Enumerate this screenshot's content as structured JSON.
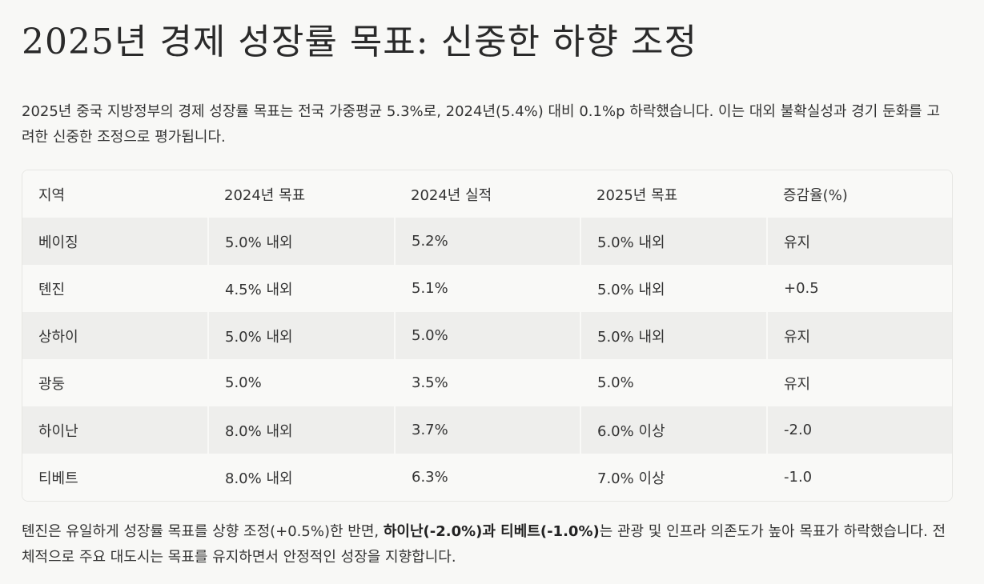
{
  "title": "2025년 경제 성장률 목표: 신중한 하향 조정",
  "intro": "2025년 중국 지방정부의 경제 성장률 목표는 전국 가중평균 5.3%로, 2024년(5.4%) 대비 0.1%p 하락했습니다. 이는 대외 불확실성과 경기 둔화를 고려한 신중한 조정으로 평가됩니다.",
  "table": {
    "headers": [
      "지역",
      "2024년 목표",
      "2024년 실적",
      "2025년 목표",
      "증감율(%)"
    ],
    "rows": [
      [
        "베이징",
        "5.0% 내외",
        "5.2%",
        "5.0% 내외",
        "유지"
      ],
      [
        "톈진",
        "4.5% 내외",
        "5.1%",
        "5.0% 내외",
        "+0.5"
      ],
      [
        "상하이",
        "5.0% 내외",
        "5.0%",
        "5.0% 내외",
        "유지"
      ],
      [
        "광둥",
        "5.0%",
        "3.5%",
        "5.0%",
        "유지"
      ],
      [
        "하이난",
        "8.0% 내외",
        "3.7%",
        "6.0% 이상",
        "-2.0"
      ],
      [
        "티베트",
        "8.0% 내외",
        "6.3%",
        "7.0% 이상",
        "-1.0"
      ]
    ]
  },
  "outro": {
    "part1": "톈진은 유일하게 성장률 목표를 상향 조정(+0.5%)한 반면, ",
    "bold": "하이난(-2.0%)과 티베트(-1.0%)",
    "part2": "는 관광 및 인프라 의존도가 높아 목표가 하락했습니다. 전체적으로 주요 대도시는 목표를 유지하면서 안정적인 성장을 지향합니다."
  }
}
